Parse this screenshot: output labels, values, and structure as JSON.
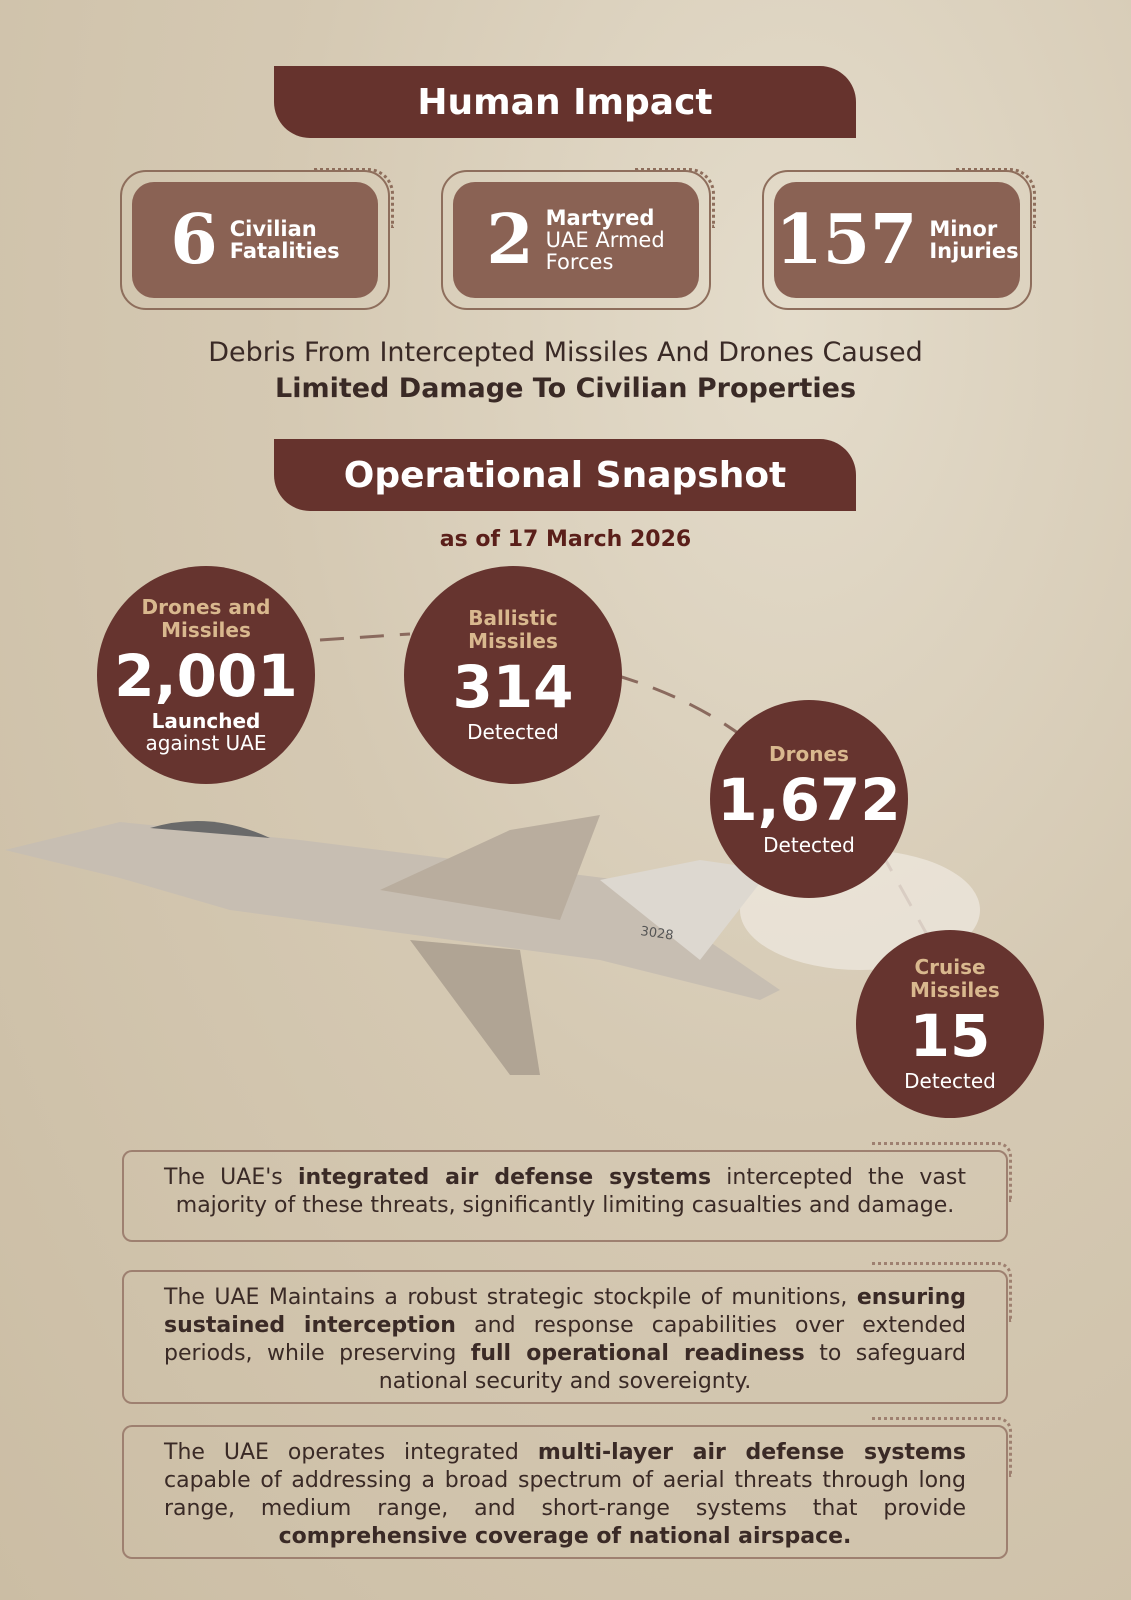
{
  "human_impact": {
    "title": "Human Impact",
    "stats": [
      {
        "value": "6",
        "label": "Civilian",
        "label2": "Fatalities"
      },
      {
        "value": "2",
        "label": "Martyred",
        "label2": "UAE Armed Forces"
      },
      {
        "value": "157",
        "label": "Minor",
        "label2": "Injuries"
      }
    ],
    "debris_line1": "Debris From Intercepted Missiles And Drones Caused",
    "debris_line2": "Limited Damage To Civilian Properties"
  },
  "snapshot": {
    "title": "Operational Snapshot",
    "as_of": "as of 17 March 2026",
    "circles": [
      {
        "title": "Drones and Missiles",
        "value": "2,001",
        "label_bold": "Launched",
        "label": "against UAE"
      },
      {
        "title": "Ballistic Missiles",
        "value": "314",
        "label": "Detected"
      },
      {
        "title": "Drones",
        "value": "1,672",
        "label": "Detected"
      },
      {
        "title": "Cruise Missiles",
        "value": "15",
        "label": "Detected"
      }
    ],
    "jet_tail_number": "3028"
  },
  "paragraphs": [
    [
      {
        "t": "The UAE's "
      },
      {
        "t": "integrated air defense systems",
        "b": true
      },
      {
        "t": " intercepted the vast majority of these threats, significantly limiting casualties and damage."
      }
    ],
    [
      {
        "t": "The UAE Maintains a robust strategic stockpile of munitions, "
      },
      {
        "t": "ensuring sustained interception",
        "b": true
      },
      {
        "t": " and response capabilities over extended periods, while preserving "
      },
      {
        "t": "full operational readiness",
        "b": true
      },
      {
        "t": " to safeguard national security and sovereignty."
      }
    ],
    [
      {
        "t": "The UAE operates integrated "
      },
      {
        "t": "multi-layer air defense systems",
        "b": true
      },
      {
        "t": " capable of addressing a broad spectrum of aerial threats through long range, medium range, and short-range systems that provide "
      },
      {
        "t": "comprehensive coverage of national airspace.",
        "b": true
      }
    ]
  ],
  "colors": {
    "banner": "#66332d",
    "stat_box": "#8a6254",
    "circle": "#66342f",
    "circle_title": "#d9b88e",
    "background": "#d5c9b3"
  }
}
